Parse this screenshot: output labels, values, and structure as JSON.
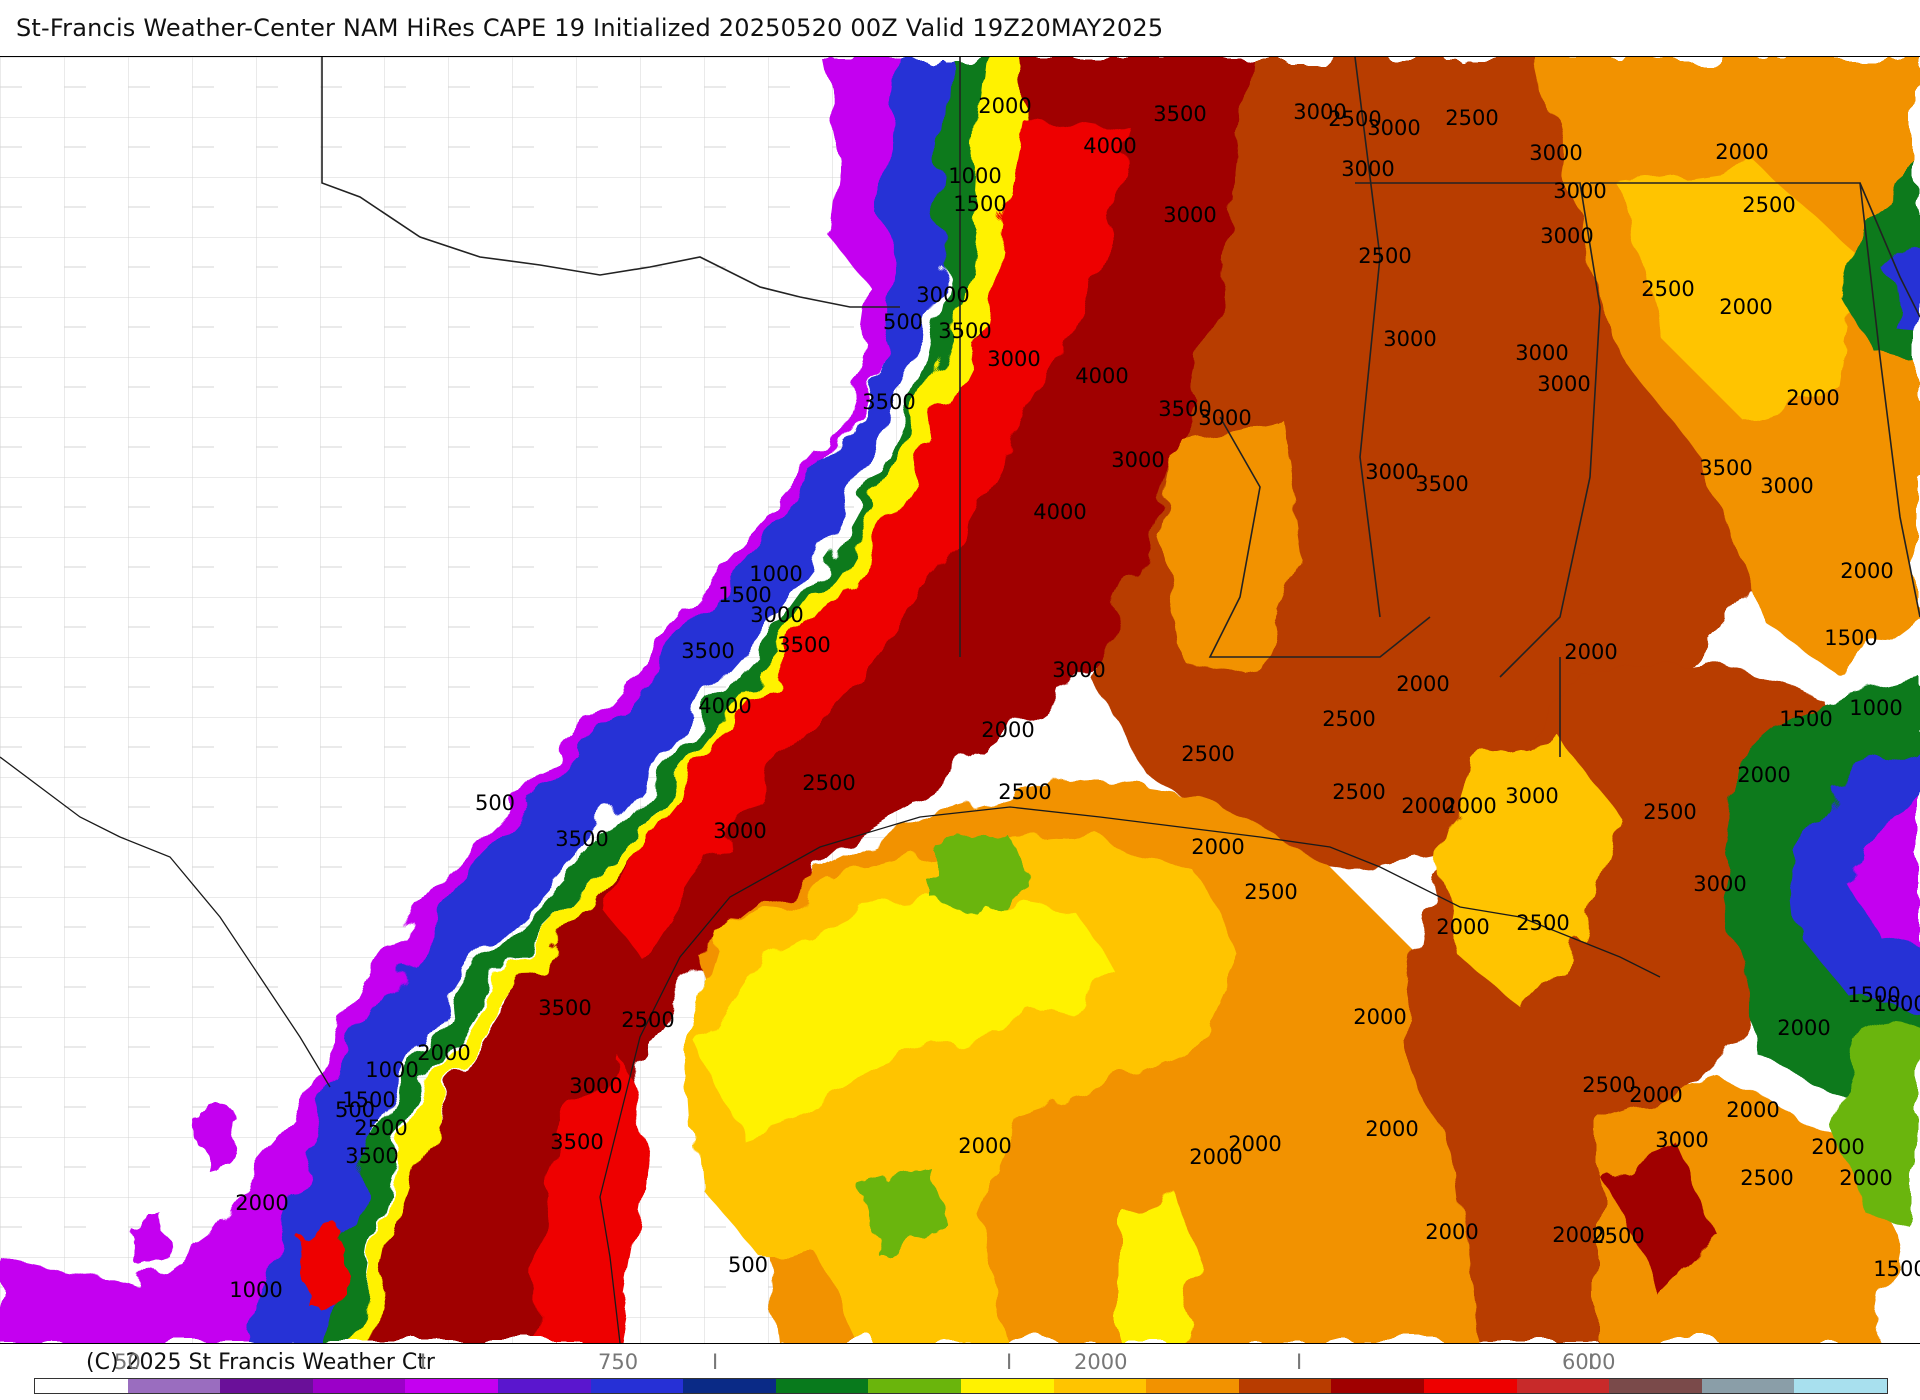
{
  "title": "St-Francis Weather-Center NAM HiRes CAPE  19 Initialized 20250520 00Z Valid 19Z20MAY2025",
  "footer": {
    "copyright": "(C) 2025 St Francis Weather Ctr",
    "ticks": [
      "50",
      "I",
      "750",
      "I",
      "I",
      "2000",
      "I",
      "6000",
      "I"
    ]
  },
  "colorbar": {
    "colors": [
      "#ffffff",
      "#9a6dbf",
      "#6a1099",
      "#9b00c8",
      "#c400f0",
      "#5a16ce",
      "#2630d6",
      "#0a2a86",
      "#087a1c",
      "#6ab50c",
      "#fff200",
      "#ffc400",
      "#f29200",
      "#b83c00",
      "#a00000",
      "#ee0000",
      "#c82a2a",
      "#7a4a4a",
      "#8a9ea8",
      "#a8e0ee"
    ]
  },
  "contour_labels": [
    "2000",
    "3500",
    "4000",
    "1000",
    "1500",
    "3000",
    "3000",
    "500",
    "3500",
    "3000",
    "4000",
    "3500",
    "3000",
    "3000",
    "3500",
    "3000",
    "2500",
    "3000",
    "2500",
    "3000",
    "3000",
    "3000",
    "3000",
    "2500",
    "2000",
    "2500",
    "2000",
    "2500",
    "3000",
    "3000",
    "3000",
    "3500",
    "3000",
    "2000",
    "3500",
    "3000",
    "2000",
    "4000",
    "1000",
    "1500",
    "3000",
    "3500",
    "3500",
    "4000",
    "2000",
    "3000",
    "2500",
    "2500",
    "2500",
    "2500",
    "2000",
    "2500",
    "1500",
    "2000",
    "1000",
    "1500",
    "2000",
    "3000",
    "2500",
    "500",
    "3000",
    "3500",
    "2000",
    "2500",
    "2000",
    "3000",
    "2000",
    "2500",
    "2000",
    "1000",
    "1500",
    "2000",
    "3500",
    "2500",
    "2000",
    "1000",
    "1500",
    "2000",
    "500",
    "2500",
    "3000",
    "3500",
    "3500",
    "2000",
    "2000",
    "2000",
    "2000",
    "2500",
    "2000",
    "2000",
    "3000",
    "2500",
    "2000",
    "1000",
    "500",
    "2000",
    "2000",
    "2000",
    "2500",
    "2000",
    "1500"
  ],
  "map_icons": [
    "state-border-icon",
    "county-lines-icon",
    "coastline-icon"
  ]
}
